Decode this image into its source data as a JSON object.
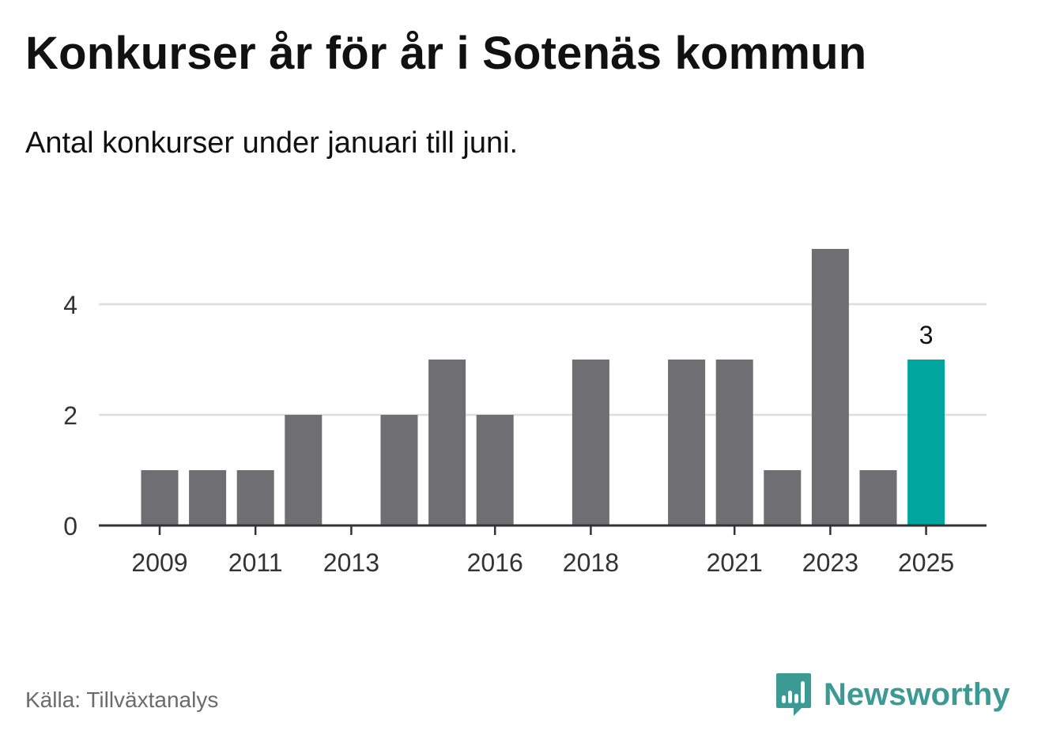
{
  "title": "Konkurser år för år i Sotenäs kommun",
  "subtitle": "Antal konkurser under januari till juni.",
  "source": "Källa: Tillväxtanalys",
  "brand": "Newsworthy",
  "colors": {
    "bar": "#6f6e73",
    "highlight": "#00a59d",
    "grid": "#dddddd",
    "axis": "#333333",
    "text": "#333333",
    "brand": "#3c9a94"
  },
  "chart_data": {
    "type": "bar",
    "categories": [
      "2009",
      "2010",
      "2011",
      "2012",
      "2013",
      "2014",
      "2015",
      "2016",
      "2017",
      "2018",
      "2019",
      "2020",
      "2021",
      "2022",
      "2023",
      "2024",
      "2025"
    ],
    "values": [
      1,
      1,
      1,
      2,
      0,
      2,
      3,
      2,
      0,
      3,
      0,
      3,
      3,
      1,
      5,
      1,
      3
    ],
    "highlight_index": 16,
    "highlight_label": "3",
    "x_tick_labels": [
      "2009",
      "2011",
      "2013",
      "2016",
      "2018",
      "2021",
      "2023",
      "2025"
    ],
    "y_ticks": [
      0,
      2,
      4
    ],
    "ylim": [
      0,
      5
    ],
    "grid": true,
    "xlabel": "",
    "ylabel": ""
  }
}
